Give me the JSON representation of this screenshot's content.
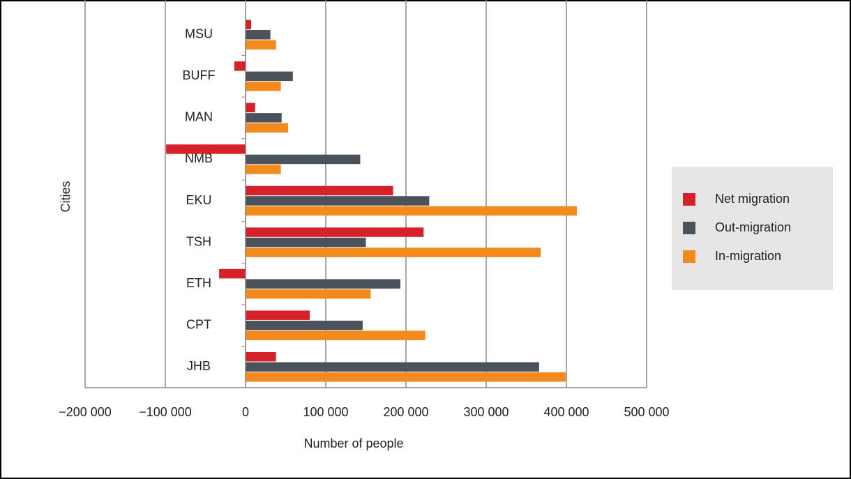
{
  "chart_data": {
    "type": "bar",
    "orientation": "horizontal",
    "categories": [
      "MSU",
      "BUFF",
      "MAN",
      "NMB",
      "EKU",
      "TSH",
      "ETH",
      "CPT",
      "JHB"
    ],
    "series": [
      {
        "name": "Net migration",
        "color": "#d7212a",
        "values": [
          7000,
          -14000,
          12000,
          -99000,
          184000,
          222000,
          -33000,
          80000,
          38000
        ]
      },
      {
        "name": "Out-migration",
        "color": "#4a535c",
        "values": [
          31000,
          59000,
          45000,
          143000,
          229000,
          150000,
          193000,
          146000,
          366000
        ]
      },
      {
        "name": "In-migration",
        "color": "#f28a1d",
        "values": [
          38000,
          44000,
          53000,
          44000,
          413000,
          368000,
          156000,
          224000,
          399000
        ]
      }
    ],
    "xlabel": "Number of people",
    "ylabel": "Cities",
    "xlim": [
      -200000,
      500000
    ],
    "xticks": [
      {
        "value": -200000,
        "label": "−200 000"
      },
      {
        "value": -100000,
        "label": "−100 000"
      },
      0,
      {
        "value": 100000,
        "label": "100 000"
      },
      {
        "value": 200000,
        "label": "200 000"
      },
      {
        "value": 300000,
        "label": "300 000"
      },
      {
        "value": 400000,
        "label": "400 000"
      },
      {
        "value": 500000,
        "label": "500 000"
      }
    ],
    "grid": true,
    "legend": "right"
  }
}
